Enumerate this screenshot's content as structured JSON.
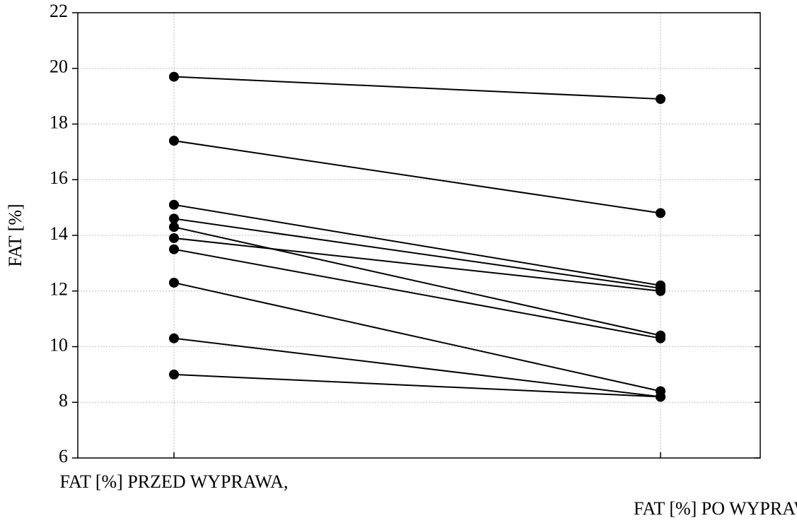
{
  "chart_data": {
    "type": "line",
    "y_label": "FAT [%]",
    "categories": [
      "FAT [%] PRZED WYPRAWA,",
      "FAT [%]  PO WYPRAWIE"
    ],
    "series": [
      {
        "color": "#000000",
        "values": [
          19.7,
          18.9
        ]
      },
      {
        "color": "#000000",
        "values": [
          17.4,
          14.8
        ]
      },
      {
        "color": "#000000",
        "values": [
          15.1,
          12.2
        ]
      },
      {
        "color": "#000000",
        "values": [
          14.6,
          12.1
        ]
      },
      {
        "color": "#000000",
        "values": [
          14.3,
          10.4
        ]
      },
      {
        "color": "#000000",
        "values": [
          13.9,
          12.0
        ]
      },
      {
        "color": "#000000",
        "values": [
          13.5,
          10.3
        ]
      },
      {
        "color": "#000000",
        "values": [
          12.3,
          8.4
        ]
      },
      {
        "color": "#000000",
        "values": [
          10.3,
          8.2
        ]
      },
      {
        "color": "#000000",
        "values": [
          9.0,
          8.2
        ]
      }
    ],
    "ylim": [
      6,
      22
    ],
    "yticks": [
      6,
      8,
      10,
      12,
      14,
      16,
      18,
      20,
      22
    ],
    "grid": true
  }
}
